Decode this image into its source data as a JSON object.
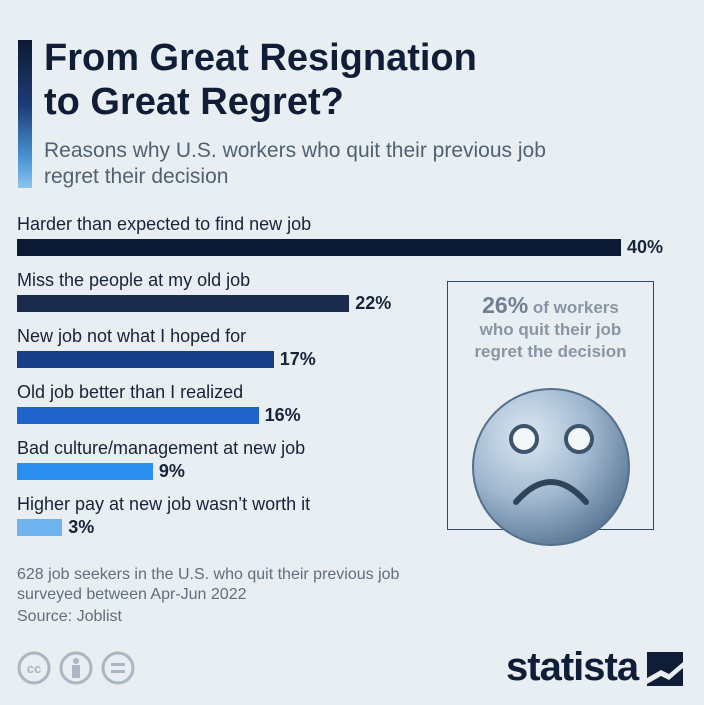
{
  "header": {
    "title_line1": "From Great Resignation",
    "title_line2": "to Great Regret?",
    "subtitle_line1": "Reasons why U.S. workers who quit their previous job",
    "subtitle_line2": "regret their decision"
  },
  "chart_data": {
    "type": "bar",
    "orientation": "horizontal",
    "categories": [
      "Harder than expected to find new job",
      "Miss the people at my old job",
      "New job not what I hoped for",
      "Old job better than I realized",
      "Bad culture/management at new job",
      "Higher pay at new job wasn’t worth it"
    ],
    "values": [
      40,
      22,
      17,
      16,
      9,
      3
    ],
    "value_labels": [
      "40%",
      "22%",
      "17%",
      "16%",
      "9%",
      "3%"
    ],
    "bar_colors": [
      "#0d1a33",
      "#1b2b4b",
      "#173e87",
      "#1f62cc",
      "#2a8ff0",
      "#6fb3ee"
    ],
    "title": "From Great Resignation to Great Regret?",
    "xlim": [
      0,
      40
    ],
    "grid": false,
    "legend": "none"
  },
  "callout": {
    "pct": "26%",
    "line1_rest": " of workers",
    "line2": "who quit their job",
    "line3": "regret the decision",
    "icon": "sad-face-icon"
  },
  "footer": {
    "note_line1": "628 job seekers in the U.S. who quit their previous job",
    "note_line2": "surveyed between Apr-Jun 2022",
    "source": "Source: Joblist",
    "brand": "statista",
    "license_icons": [
      "creative-commons-icon",
      "attribution-icon",
      "no-derivatives-icon"
    ]
  },
  "colors": {
    "background": "#e9eef2",
    "title": "#0f1e36",
    "subtitle": "#4f6273"
  }
}
